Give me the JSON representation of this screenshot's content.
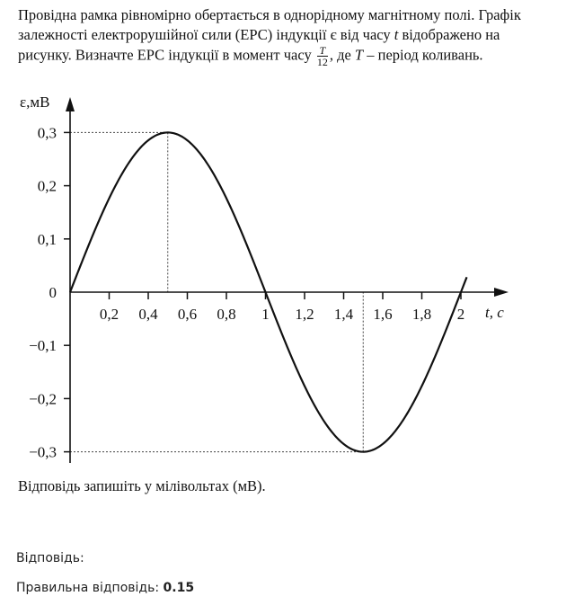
{
  "problem": {
    "part1": "Провідна рамка рівномірно обертається в однорідному магнітному полі. Графік залежності електрорушійної сили (ЕРС) індукції є від часу ",
    "var_t": "t",
    "part2": " відображено на рисунку. Визначте ЕРС індукції в момент часу ",
    "frac_num": "T",
    "frac_den": "12",
    "part3": ", де ",
    "var_T": "T",
    "part4": " – період коливань."
  },
  "note": "Відповідь запишіть у мілівольтах (мВ).",
  "answer_label": "Відповідь:",
  "correct_label": "Правильна відповідь:",
  "correct_value": "0.15",
  "chart_data": {
    "type": "line",
    "title": "",
    "ylabel": "ε,мВ",
    "xlabel": "t, с",
    "xlim": [
      0,
      2.1
    ],
    "ylim": [
      -0.3,
      0.3
    ],
    "x_ticks": [
      0.2,
      0.4,
      0.6,
      0.8,
      1,
      1.2,
      1.4,
      1.6,
      1.8,
      2
    ],
    "x_tick_labels": [
      "0,2",
      "0,4",
      "0,6",
      "0,8",
      "1",
      "1,2",
      "1,4",
      "1,6",
      "1,8",
      "2"
    ],
    "y_ticks": [
      0.3,
      0.2,
      0.1,
      0,
      -0.1,
      -0.2,
      -0.3
    ],
    "y_tick_labels": [
      "0,3",
      "0,2",
      "0,1",
      "0",
      "−0,1",
      "−0,2",
      "−0,3"
    ],
    "series": [
      {
        "amplitude": 0.3,
        "period": 2,
        "x": [
          0,
          0.1,
          0.2,
          0.3,
          0.4,
          0.5,
          0.6,
          0.7,
          0.8,
          0.9,
          1.0,
          1.1,
          1.2,
          1.3,
          1.4,
          1.5,
          1.6,
          1.7,
          1.8,
          1.9,
          2.0,
          2.03
        ],
        "y": [
          0,
          0.093,
          0.176,
          0.243,
          0.285,
          0.3,
          0.285,
          0.243,
          0.176,
          0.093,
          0,
          -0.093,
          -0.176,
          -0.243,
          -0.285,
          -0.3,
          -0.285,
          -0.243,
          -0.176,
          -0.093,
          0,
          0.028
        ]
      }
    ],
    "guides": [
      {
        "x": 0.5,
        "y": 0.3
      },
      {
        "x": 1.5,
        "y": -0.3
      }
    ]
  }
}
